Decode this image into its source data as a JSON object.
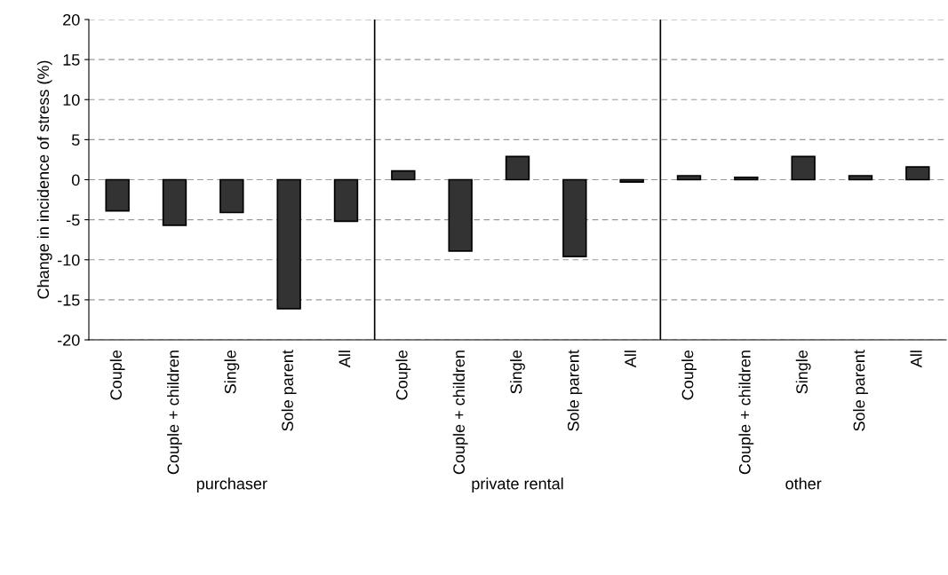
{
  "chart_data": {
    "type": "bar",
    "ylabel": "Change in incidence of stress (%)",
    "categories": [
      "Couple",
      "Couple + children",
      "Single",
      "Sole parent",
      "All",
      "Couple",
      "Couple + children",
      "Single",
      "Sole parent",
      "All",
      "Couple",
      "Couple + children",
      "Single",
      "Sole parent",
      "All"
    ],
    "values": [
      -3.9,
      -5.7,
      -4.1,
      -16.1,
      -5.2,
      1.1,
      -8.9,
      2.9,
      -9.6,
      -0.3,
      0.5,
      0.3,
      2.9,
      0.5,
      1.6
    ],
    "color": "#333333",
    "ylim": [
      -20,
      20
    ],
    "yticks": [
      -20,
      -15,
      -10,
      -5,
      0,
      5,
      10,
      15,
      20
    ],
    "grid": "y",
    "annotations": [
      "purchaser",
      "private rental",
      "other"
    ]
  }
}
